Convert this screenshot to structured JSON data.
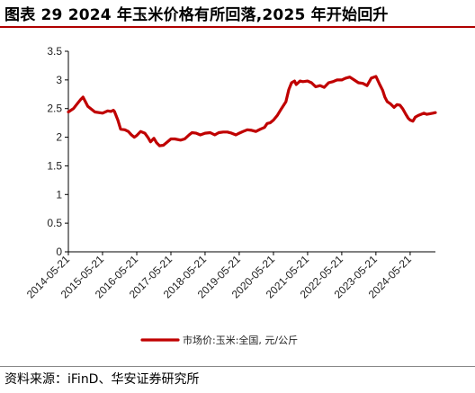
{
  "header": {
    "title": "图表 29 2024 年玉米价格有所回落,2025 年开始回升"
  },
  "footer": {
    "source": "资料来源：iFinD、华安证券研究所"
  },
  "colors": {
    "accent": "#c00000",
    "series": "#c00000",
    "axis": "#000000"
  },
  "chart_data": {
    "type": "line",
    "title": "",
    "xlabel": "",
    "ylabel": "",
    "ylim": [
      0,
      3.5
    ],
    "yticks": [
      "0",
      "0.5",
      "1",
      "1.5",
      "2",
      "2.5",
      "3",
      "3.5"
    ],
    "xticks": [
      "2014-05-21",
      "2015-05-21",
      "2016-05-21",
      "2017-05-21",
      "2018-05-21",
      "2019-05-21",
      "2020-05-21",
      "2021-05-21",
      "2022-05-21",
      "2023-05-21",
      "2024-05-21"
    ],
    "xlim": [
      "2014-05-21",
      "2025-02-15"
    ],
    "grid": false,
    "legend": "bottom-center",
    "series": [
      {
        "name": "市场价:玉米:全国, 元/公斤",
        "x": [
          "2014-05-21",
          "2014-07-15",
          "2014-09-01",
          "2014-10-01",
          "2014-10-25",
          "2014-12-15",
          "2015-03-01",
          "2015-05-21",
          "2015-07-15",
          "2015-08-20",
          "2015-09-15",
          "2015-09-25",
          "2015-11-01",
          "2015-12-01",
          "2016-01-15",
          "2016-02-20",
          "2016-03-25",
          "2016-04-25",
          "2016-05-21",
          "2016-07-01",
          "2016-08-15",
          "2016-09-20",
          "2016-10-15",
          "2016-11-20",
          "2016-12-20",
          "2017-01-20",
          "2017-03-01",
          "2017-04-01",
          "2017-05-21",
          "2017-07-01",
          "2017-09-01",
          "2017-10-15",
          "2017-12-01",
          "2018-01-01",
          "2018-02-15",
          "2018-04-01",
          "2018-05-21",
          "2018-07-15",
          "2018-09-01",
          "2018-10-15",
          "2018-12-01",
          "2019-01-15",
          "2019-03-01",
          "2019-04-15",
          "2019-05-21",
          "2019-07-01",
          "2019-08-15",
          "2019-10-01",
          "2019-11-15",
          "2020-01-01",
          "2020-02-15",
          "2020-03-15",
          "2020-04-15",
          "2020-05-21",
          "2020-07-01",
          "2020-08-15",
          "2020-10-01",
          "2020-11-01",
          "2020-12-01",
          "2021-01-01",
          "2021-01-20",
          "2021-03-01",
          "2021-04-01",
          "2021-05-21",
          "2021-07-01",
          "2021-08-15",
          "2021-10-01",
          "2021-11-15",
          "2022-01-01",
          "2022-02-15",
          "2022-04-01",
          "2022-05-21",
          "2022-07-01",
          "2022-08-15",
          "2022-10-01",
          "2022-11-15",
          "2023-01-01",
          "2023-02-15",
          "2023-04-01",
          "2023-05-21",
          "2023-07-01",
          "2023-08-01",
          "2023-08-25",
          "2023-09-20",
          "2023-10-25",
          "2023-12-01",
          "2024-01-01",
          "2024-02-01",
          "2024-03-01",
          "2024-04-01",
          "2024-05-01",
          "2024-05-21",
          "2024-06-20",
          "2024-07-15",
          "2024-08-15",
          "2024-09-15",
          "2024-10-15",
          "2024-11-15",
          "2024-12-20",
          "2025-01-20",
          "2025-02-15"
        ],
        "values": [
          2.44,
          2.5,
          2.6,
          2.66,
          2.7,
          2.54,
          2.44,
          2.42,
          2.46,
          2.45,
          2.47,
          2.45,
          2.3,
          2.14,
          2.13,
          2.1,
          2.04,
          2.0,
          2.03,
          2.1,
          2.07,
          1.99,
          1.92,
          1.98,
          1.9,
          1.85,
          1.86,
          1.9,
          1.97,
          1.97,
          1.95,
          1.97,
          2.04,
          2.08,
          2.07,
          2.04,
          2.07,
          2.08,
          2.04,
          2.08,
          2.09,
          2.09,
          2.07,
          2.04,
          2.07,
          2.1,
          2.13,
          2.12,
          2.1,
          2.14,
          2.17,
          2.24,
          2.25,
          2.3,
          2.38,
          2.5,
          2.62,
          2.83,
          2.95,
          2.98,
          2.92,
          2.98,
          2.97,
          2.98,
          2.95,
          2.88,
          2.9,
          2.87,
          2.95,
          2.97,
          3.0,
          3.0,
          3.03,
          3.05,
          3.0,
          2.95,
          2.94,
          2.9,
          3.03,
          3.06,
          2.92,
          2.82,
          2.7,
          2.62,
          2.58,
          2.52,
          2.57,
          2.56,
          2.5,
          2.41,
          2.33,
          2.3,
          2.28,
          2.35,
          2.38,
          2.4,
          2.42,
          2.4,
          2.41,
          2.42,
          2.43
        ]
      }
    ]
  }
}
